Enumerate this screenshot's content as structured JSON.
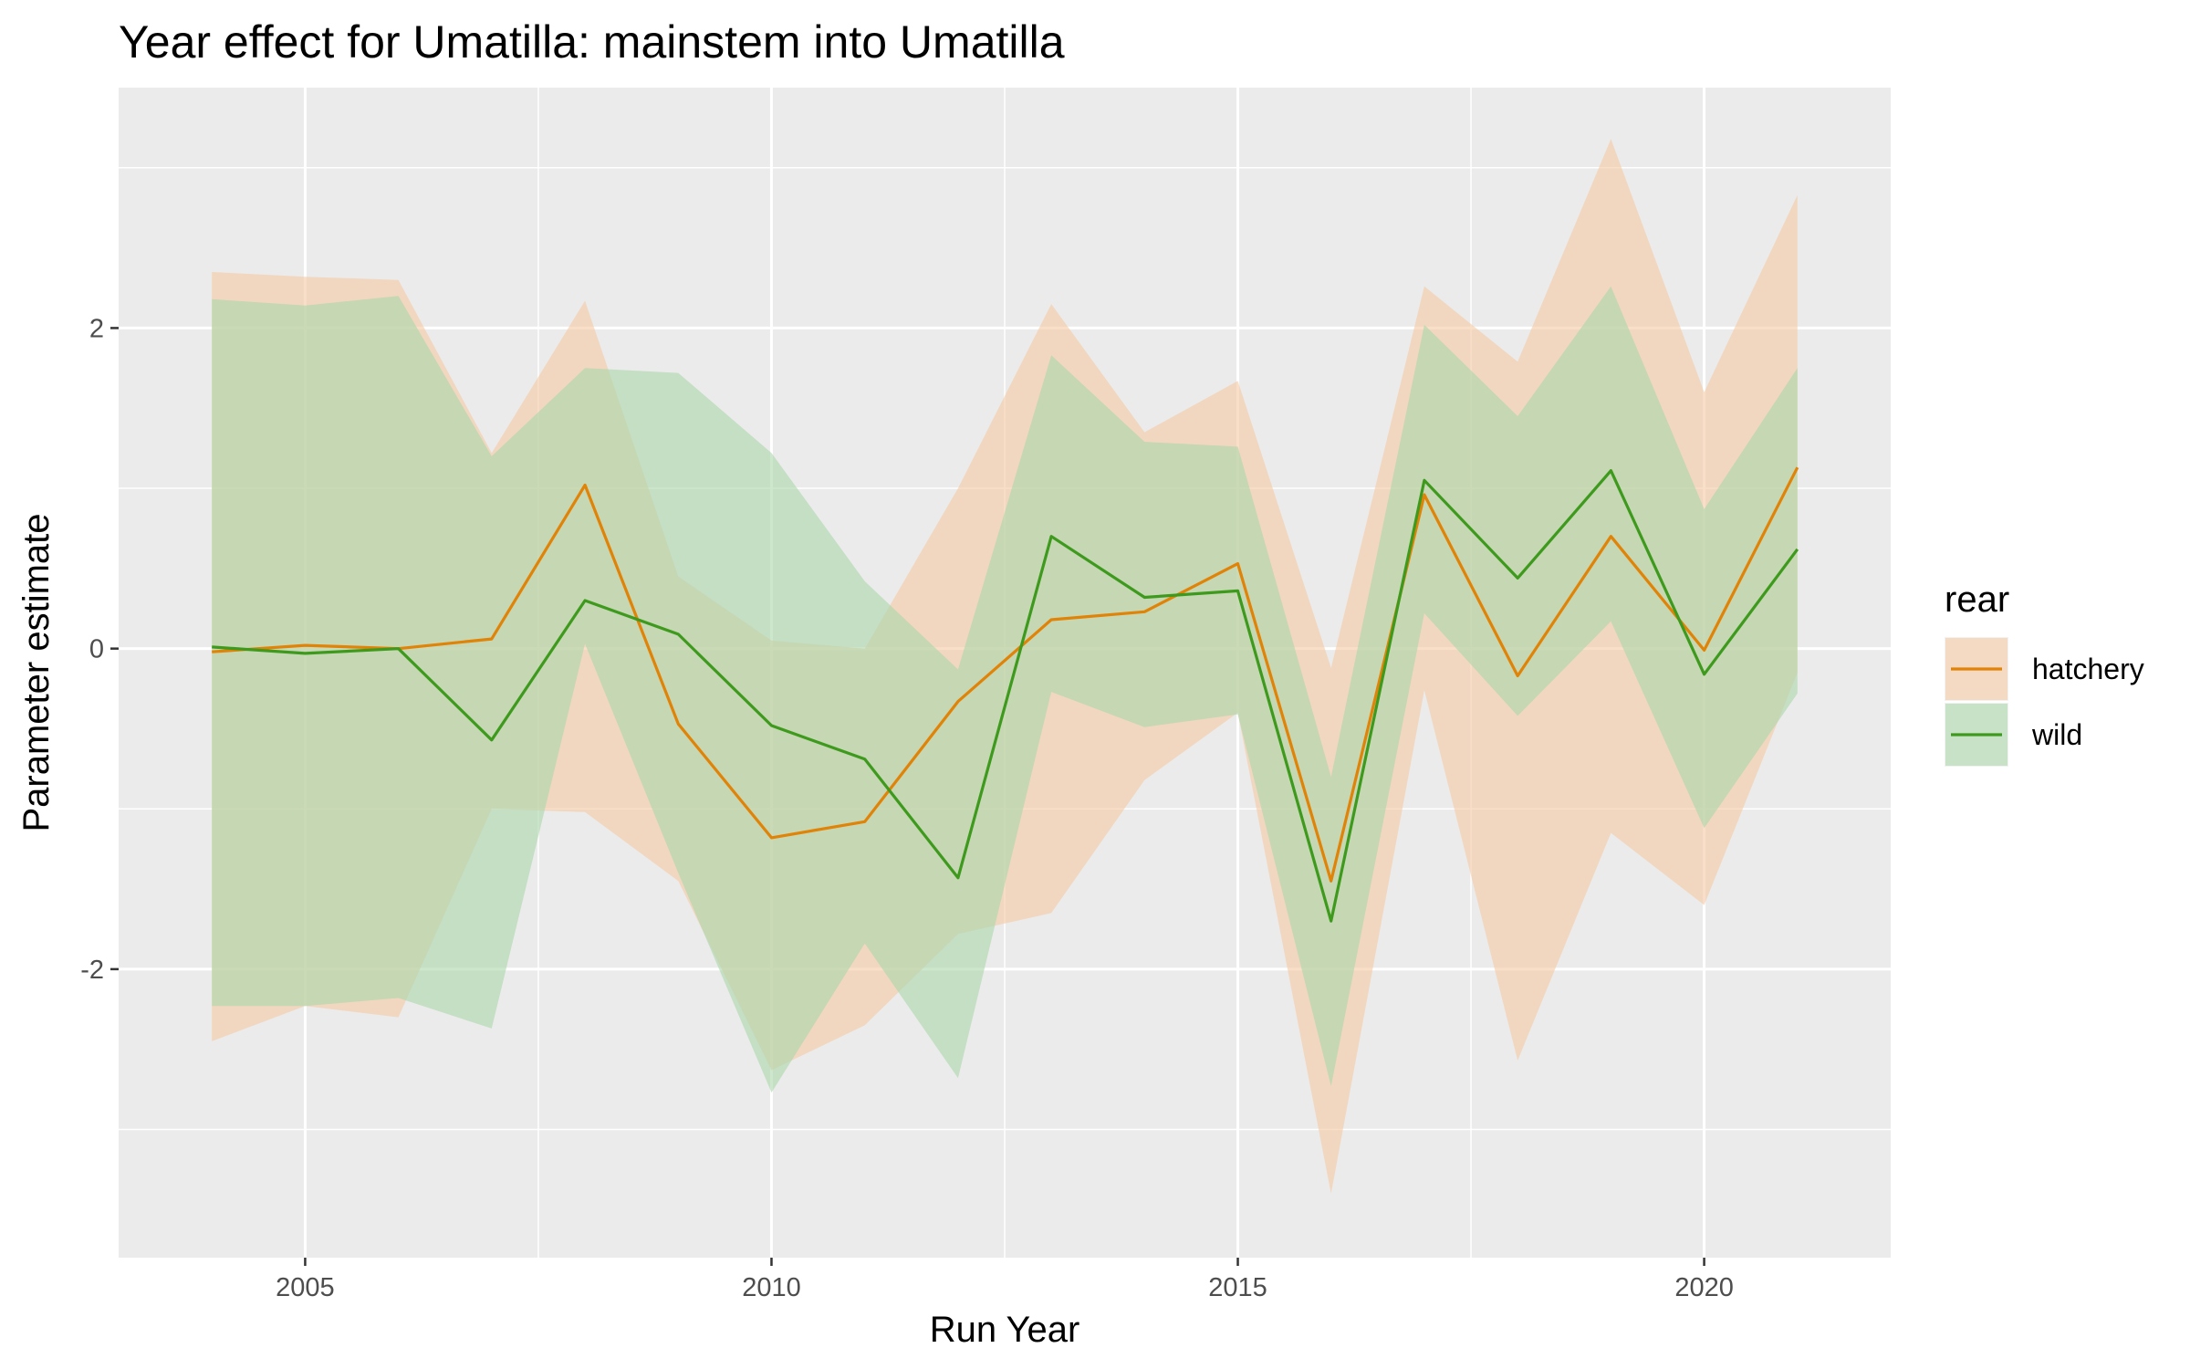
{
  "chart_data": {
    "type": "line",
    "title": "Year effect for Umatilla: mainstem into Umatilla",
    "xlabel": "Run Year",
    "ylabel": "Parameter estimate",
    "x": [
      2004,
      2005,
      2006,
      2007,
      2008,
      2009,
      2010,
      2011,
      2012,
      2013,
      2014,
      2015,
      2016,
      2017,
      2018,
      2019,
      2020,
      2021
    ],
    "xlim": [
      2003,
      2022
    ],
    "ylim": [
      -3.8,
      3.5
    ],
    "x_ticks": [
      2005,
      2010,
      2015,
      2020
    ],
    "x_tick_labels": [
      "2005",
      "2010",
      "2015",
      "2020"
    ],
    "y_ticks": [
      -2,
      0,
      2
    ],
    "y_tick_labels": [
      "-2",
      "0",
      "2"
    ],
    "grid": true,
    "legend": {
      "title": "rear",
      "position": "right"
    },
    "series": [
      {
        "name": "hatchery",
        "color": "#E08307",
        "fill": "#F5C9A4",
        "values": [
          -0.02,
          0.02,
          0.0,
          0.06,
          1.02,
          -0.47,
          -1.18,
          -1.08,
          -0.33,
          0.18,
          0.23,
          0.53,
          -1.45,
          0.96,
          -0.17,
          0.7,
          -0.01,
          1.13
        ],
        "lower": [
          -2.45,
          -2.23,
          -2.3,
          -1.0,
          -1.02,
          -1.45,
          -2.63,
          -2.35,
          -1.78,
          -1.65,
          -0.82,
          -0.4,
          -3.4,
          -0.26,
          -2.57,
          -1.15,
          -1.6,
          -0.15
        ],
        "upper": [
          2.35,
          2.32,
          2.3,
          1.22,
          2.17,
          0.45,
          0.05,
          0.0,
          1.0,
          2.15,
          1.35,
          1.67,
          -0.12,
          2.26,
          1.79,
          3.18,
          1.6,
          2.83
        ]
      },
      {
        "name": "wild",
        "color": "#3E9A1D",
        "fill": "#AAD7AA",
        "values": [
          0.01,
          -0.03,
          0.0,
          -0.57,
          0.3,
          0.09,
          -0.48,
          -0.69,
          -1.43,
          0.7,
          0.32,
          0.36,
          -1.7,
          1.05,
          0.44,
          1.11,
          -0.16,
          0.62
        ],
        "lower": [
          -2.23,
          -2.23,
          -2.18,
          -2.37,
          0.03,
          -1.4,
          -2.77,
          -1.84,
          -2.68,
          -0.27,
          -0.49,
          -0.41,
          -2.73,
          0.22,
          -0.42,
          0.17,
          -1.12,
          -0.28
        ],
        "upper": [
          2.18,
          2.14,
          2.2,
          1.2,
          1.75,
          1.72,
          1.22,
          0.42,
          -0.13,
          1.83,
          1.29,
          1.26,
          -0.8,
          2.02,
          1.45,
          2.26,
          0.87,
          1.75
        ]
      }
    ]
  }
}
